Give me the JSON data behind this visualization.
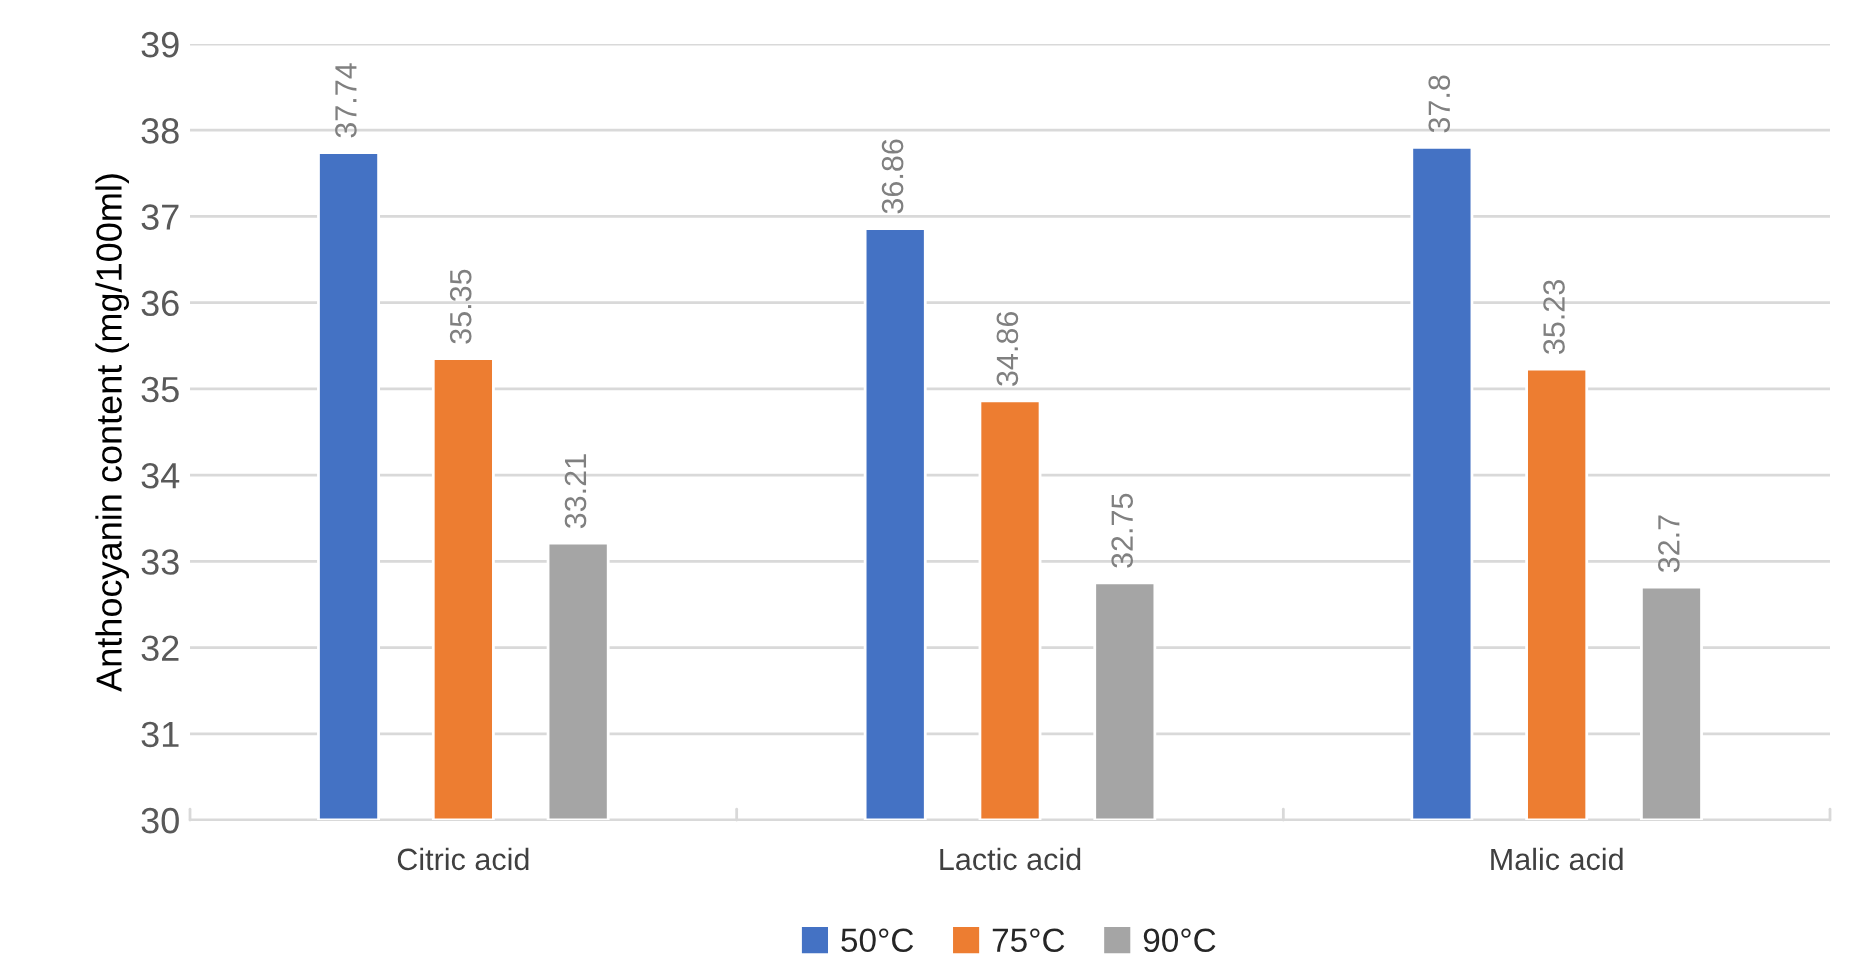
{
  "chart_data": {
    "type": "bar",
    "ylabel": "Anthocyanin content (mg/100ml)",
    "categories": [
      "Citric acid",
      "Lactic acid",
      "Malic acid"
    ],
    "series": [
      {
        "name": "50°C",
        "color": "#4472c4",
        "values": [
          37.74,
          36.86,
          37.8
        ]
      },
      {
        "name": "75°C",
        "color": "#ed7d31",
        "values": [
          35.35,
          34.86,
          35.23
        ]
      },
      {
        "name": "90°C",
        "color": "#a5a5a5",
        "values": [
          33.21,
          32.75,
          32.7
        ]
      }
    ],
    "ylim": [
      30,
      39
    ],
    "yticks": [
      30,
      31,
      32,
      33,
      34,
      35,
      36,
      37,
      38,
      39
    ],
    "grid": "y",
    "legend": "bottom",
    "data_labels": true
  }
}
